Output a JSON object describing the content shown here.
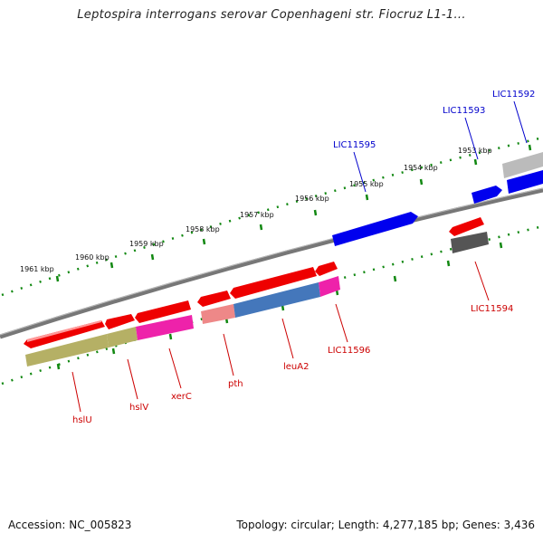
{
  "title": "Leptospira interrogans serovar Copenhageni str. Fiocruz L1-1...",
  "footer": {
    "accession": "Accession: NC_005823",
    "summary": "Topology: circular; Length: 4,277,185 bp; Genes: 3,436"
  },
  "colors": {
    "forward_gene": "#ee0000",
    "reverse_gene": "#0000ee",
    "backbone": "#777777",
    "tick": "#118811",
    "label_forward": "#cc0000",
    "label_reverse": "#0000cc"
  },
  "scale": {
    "unit": "kbp",
    "labels": [
      "1961 kbp",
      "1960 kbp",
      "1959 kbp",
      "1958 kbp",
      "1957 kbp",
      "1956 kbp",
      "1955 kbp",
      "1954 kbp",
      "1953 kbp"
    ]
  },
  "genes": [
    {
      "name": "hslU",
      "strand": "forward",
      "cds_color": "#b5b065"
    },
    {
      "name": "hslV",
      "strand": "forward",
      "cds_color": "#b5b065"
    },
    {
      "name": "xerC",
      "strand": "forward",
      "cds_color": "#ee22aa"
    },
    {
      "name": "pth",
      "strand": "forward",
      "cds_color": "#ee8888"
    },
    {
      "name": "leuA2",
      "strand": "forward",
      "cds_color": "#4477bb"
    },
    {
      "name": "LIC11596",
      "strand": "forward",
      "cds_color": "#ee22aa"
    },
    {
      "name": "LIC11595",
      "strand": "reverse",
      "cds_color": ""
    },
    {
      "name": "LIC11594",
      "strand": "forward",
      "cds_color": "#555555"
    },
    {
      "name": "LIC11593",
      "strand": "reverse",
      "cds_color": ""
    },
    {
      "name": "LIC11592",
      "strand": "reverse",
      "cds_color": "#bbbbbb"
    }
  ]
}
